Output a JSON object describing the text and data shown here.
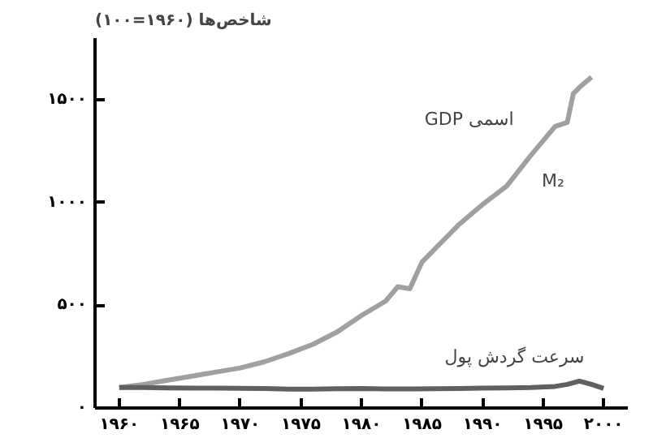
{
  "chart_data": {
    "type": "line",
    "ylabel": "شاخص‌ها (۱۹۶۰=۱۰۰)",
    "xlim": [
      1958,
      2002
    ],
    "ylim": [
      0,
      1800
    ],
    "xticks": [
      {
        "value": 1960,
        "label": "۱۹۶۰"
      },
      {
        "value": 1965,
        "label": "۱۹۶۵"
      },
      {
        "value": 1970,
        "label": "۱۹۷۰"
      },
      {
        "value": 1975,
        "label": "۱۹۷۵"
      },
      {
        "value": 1980,
        "label": "۱۹۸۰"
      },
      {
        "value": 1985,
        "label": "۱۹۸۵"
      },
      {
        "value": 1990,
        "label": "۱۹۹۰"
      },
      {
        "value": 1995,
        "label": "۱۹۹۵"
      },
      {
        "value": 2000,
        "label": "۲۰۰۰"
      }
    ],
    "yticks": [
      {
        "value": 0,
        "label": "۰"
      },
      {
        "value": 500,
        "label": "۵۰۰"
      },
      {
        "value": 1000,
        "label": "۱۰۰۰"
      },
      {
        "value": 1500,
        "label": "۱۵۰۰"
      }
    ],
    "grid": false,
    "series": [
      {
        "name": "GDP اسمی",
        "color": "#a0a0a0",
        "x": [
          1960,
          1962,
          1964,
          1966,
          1968,
          1970,
          1972,
          1974,
          1976,
          1978,
          1980,
          1982,
          1983,
          1984,
          1985,
          1986,
          1987,
          1988,
          1990,
          1992,
          1994,
          1996,
          1997,
          1997.5,
          1998,
          1999
        ],
        "values": [
          100,
          115,
          135,
          155,
          175,
          195,
          225,
          265,
          310,
          370,
          450,
          520,
          590,
          580,
          710,
          770,
          830,
          890,
          990,
          1080,
          1230,
          1370,
          1390,
          1530,
          1560,
          1610
        ]
      },
      {
        "name": "سرعت گردش پول",
        "color": "#606060",
        "x": [
          1960,
          1962,
          1964,
          1966,
          1968,
          1970,
          1972,
          1974,
          1976,
          1978,
          1980,
          1982,
          1984,
          1986,
          1988,
          1990,
          1992,
          1994,
          1996,
          1997,
          1998,
          1999,
          2000
        ],
        "values": [
          100,
          100,
          98,
          97,
          97,
          96,
          95,
          92,
          92,
          94,
          95,
          93,
          93,
          94,
          95,
          97,
          98,
          100,
          105,
          115,
          131,
          115,
          95
        ]
      }
    ],
    "annotations": [
      "M₂"
    ]
  }
}
